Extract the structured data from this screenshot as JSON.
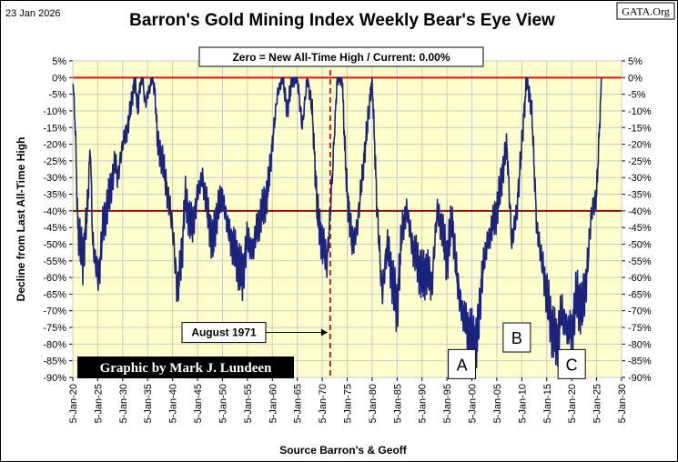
{
  "header": {
    "date": "23 Jan 2026",
    "title": "Barron's Gold Mining Index Weekly Bear's Eye View",
    "source_badge": "GATA.Org"
  },
  "credit": "Graphic by Mark J. Lundeen",
  "chart_data": {
    "type": "line",
    "title": "Barron's Gold Mining Index Weekly Bear's Eye View",
    "ylabel": "Decline from Last All-Time High",
    "xlabel": "Source Barron's & Geoff",
    "ylim": [
      -90,
      5
    ],
    "y_ticks": [
      5,
      0,
      -5,
      -10,
      -15,
      -20,
      -25,
      -30,
      -35,
      -40,
      -45,
      -50,
      -55,
      -60,
      -65,
      -70,
      -75,
      -80,
      -85,
      -90
    ],
    "y_tick_labels": [
      "5%",
      "0%",
      "-5%",
      "-10%",
      "-15%",
      "-20%",
      "-25%",
      "-30%",
      "-35%",
      "-40%",
      "-45%",
      "-50%",
      "-55%",
      "-60%",
      "-65%",
      "-70%",
      "-75%",
      "-80%",
      "-85%",
      "-90%"
    ],
    "x_ticks": [
      1920,
      1925,
      1930,
      1935,
      1940,
      1945,
      1950,
      1955,
      1960,
      1965,
      1970,
      1975,
      1980,
      1985,
      1990,
      1995,
      2000,
      2005,
      2010,
      2015,
      2020,
      2025,
      2030
    ],
    "x_tick_labels": [
      "5-Jan-20",
      "5-Jan-25",
      "5-Jan-30",
      "5-Jan-35",
      "5-Jan-40",
      "5-Jan-45",
      "5-Jan-50",
      "5-Jan-55",
      "5-Jan-60",
      "5-Jan-65",
      "5-Jan-70",
      "5-Jan-75",
      "5-Jan-80",
      "5-Jan-85",
      "5-Jan-90",
      "5-Jan-95",
      "5-Jan-00",
      "5-Jan-05",
      "5-Jan-10",
      "5-Jan-15",
      "5-Jan-20",
      "5-Jan-25",
      "5-Jan-30"
    ],
    "xlim": [
      1920,
      2030
    ],
    "grid": true,
    "reference_lines": [
      {
        "y": 0,
        "color": "#e01010"
      },
      {
        "y": -40,
        "color": "#8b1010"
      }
    ],
    "vertical_marker": {
      "x": 1971.6,
      "color": "#b22222"
    },
    "info_box": "Zero = New All-Time High / Current:  0.00%",
    "annotations": [
      {
        "text": "August 1971",
        "x": 1971.6,
        "y": -76.5
      },
      {
        "text": "A",
        "x": 1998,
        "y": -86
      },
      {
        "text": "B",
        "x": 2009,
        "y": -78
      },
      {
        "text": "C",
        "x": 2020,
        "y": -86
      }
    ],
    "series_color": "#1a237e",
    "x": [
      1920.0,
      1920.5,
      1921.0,
      1922.0,
      1923.0,
      1923.5,
      1924.0,
      1925.0,
      1925.5,
      1926.0,
      1927.0,
      1928.0,
      1928.5,
      1929.0,
      1930.0,
      1931.0,
      1932.0,
      1932.5,
      1933.0,
      1933.5,
      1934.0,
      1934.5,
      1935.0,
      1936.0,
      1936.5,
      1937.0,
      1938.0,
      1939.0,
      1940.0,
      1941.0,
      1942.0,
      1942.5,
      1943.0,
      1944.0,
      1945.0,
      1946.0,
      1947.0,
      1948.0,
      1949.0,
      1950.0,
      1951.0,
      1952.0,
      1953.0,
      1954.0,
      1955.0,
      1956.0,
      1957.0,
      1958.0,
      1959.0,
      1960.0,
      1961.0,
      1962.0,
      1963.0,
      1964.0,
      1965.0,
      1966.0,
      1967.0,
      1968.0,
      1969.0,
      1970.0,
      1971.0,
      1972.0,
      1973.0,
      1974.0,
      1974.5,
      1975.0,
      1976.0,
      1977.0,
      1978.0,
      1979.0,
      1980.0,
      1980.5,
      1981.0,
      1982.0,
      1983.0,
      1984.0,
      1985.0,
      1986.0,
      1987.0,
      1988.0,
      1989.0,
      1990.0,
      1991.0,
      1992.0,
      1993.0,
      1994.0,
      1995.0,
      1996.0,
      1997.0,
      1998.0,
      1999.0,
      2000.0,
      2001.0,
      2002.0,
      2003.0,
      2004.0,
      2005.0,
      2006.0,
      2007.0,
      2008.0,
      2009.0,
      2010.0,
      2011.0,
      2012.0,
      2013.0,
      2014.0,
      2015.0,
      2016.0,
      2017.0,
      2018.0,
      2019.0,
      2020.0,
      2021.0,
      2022.0,
      2023.0,
      2024.0,
      2025.0,
      2026.0
    ],
    "y": [
      0,
      -15,
      -45,
      -55,
      -38,
      -20,
      -50,
      -60,
      -55,
      -45,
      -38,
      -30,
      -25,
      -30,
      -20,
      -15,
      -5,
      0,
      -10,
      -2,
      0,
      -8,
      -5,
      0,
      -5,
      -20,
      -25,
      -35,
      -45,
      -65,
      -50,
      -35,
      -40,
      -45,
      -35,
      -30,
      -40,
      -50,
      -40,
      -35,
      -45,
      -50,
      -55,
      -60,
      -48,
      -52,
      -45,
      -40,
      -35,
      -20,
      -5,
      0,
      -10,
      0,
      0,
      -15,
      0,
      -10,
      -40,
      -50,
      -55,
      -30,
      0,
      0,
      -20,
      -35,
      -50,
      -45,
      -30,
      -15,
      0,
      -20,
      -40,
      -65,
      -50,
      -60,
      -70,
      -45,
      -40,
      -50,
      -55,
      -60,
      -58,
      -62,
      -40,
      -45,
      -55,
      -42,
      -60,
      -70,
      -75,
      -78,
      -80,
      -60,
      -50,
      -45,
      -40,
      -30,
      -20,
      -50,
      -40,
      -20,
      0,
      -10,
      -45,
      -55,
      -65,
      -75,
      -80,
      -70,
      -75,
      -77,
      -65,
      -70,
      -60,
      -40,
      -35,
      0
    ]
  }
}
